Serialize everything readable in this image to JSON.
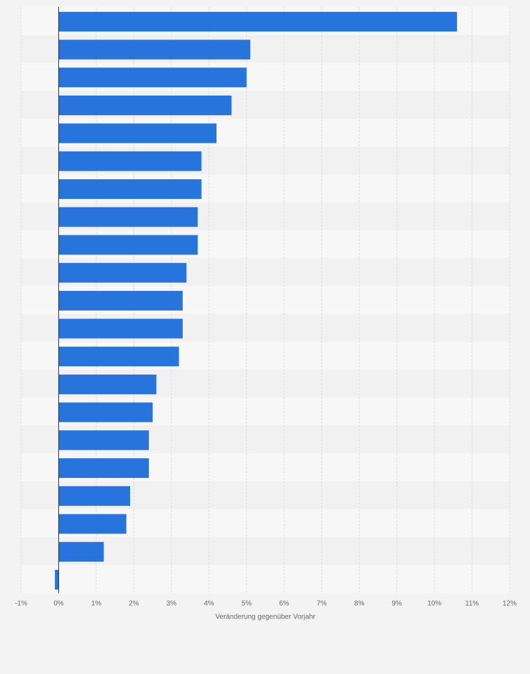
{
  "chart_data": {
    "type": "bar",
    "orientation": "horizontal",
    "values": [
      10.6,
      5.1,
      5.0,
      4.6,
      4.2,
      3.8,
      3.8,
      3.7,
      3.7,
      3.4,
      3.3,
      3.3,
      3.2,
      2.6,
      2.5,
      2.4,
      2.4,
      1.9,
      1.8,
      1.2,
      -0.1
    ],
    "xlabel": "Veränderung gegenüber Vorjahr",
    "ylabel": "",
    "xlim": [
      -1,
      12
    ],
    "ticks": [
      -1,
      0,
      1,
      2,
      3,
      4,
      5,
      6,
      7,
      8,
      9,
      10,
      11,
      12
    ],
    "tick_labels": [
      "-1%",
      "0%",
      "1%",
      "2%",
      "3%",
      "4%",
      "5%",
      "6%",
      "7%",
      "8%",
      "9%",
      "10%",
      "11%",
      "12%"
    ],
    "grid": true,
    "colors": {
      "bar": "#2874dd",
      "band_light": "#f7f7f7",
      "band_dark": "#f1f1f1",
      "grid": "#dcdcdc",
      "zero_line": "#333333"
    }
  }
}
